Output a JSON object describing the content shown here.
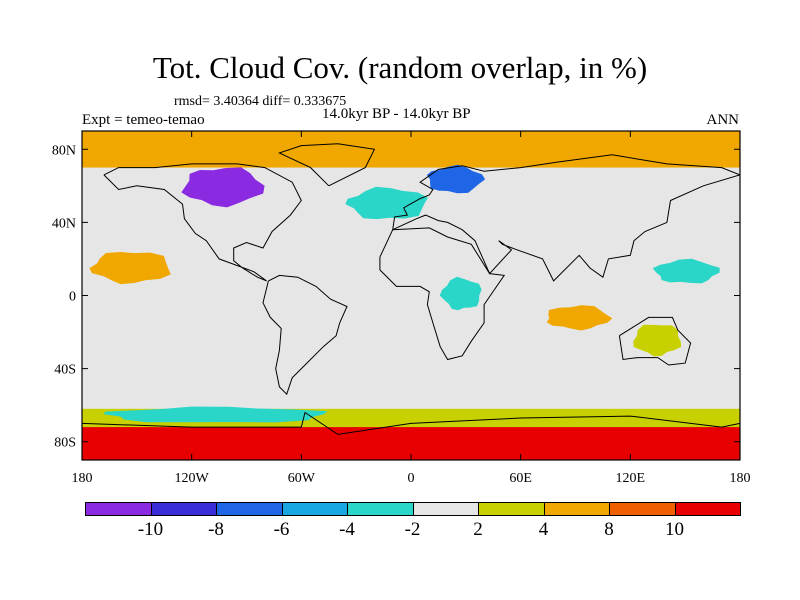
{
  "title": "Tot. Cloud Cov. (random overlap, in %)",
  "stats": {
    "rmsd_diff": "rmsd= 3.40364 diff= 0.333675"
  },
  "left_label": "Expt = temeo-temao",
  "center_label": "14.0kyr BP - 14.0kyr BP",
  "right_label": "ANN",
  "lat_ticks": [
    "80N",
    "40N",
    "0",
    "40S",
    "80S"
  ],
  "lon_ticks": [
    "180",
    "120W",
    "60W",
    "0",
    "60E",
    "120E",
    "180"
  ],
  "colorbar": {
    "labels": [
      "-10",
      "-8",
      "-6",
      "-4",
      "-2",
      "2",
      "4",
      "8",
      "10"
    ],
    "colors": [
      "#8a2be2",
      "#3a2ed8",
      "#1e66e6",
      "#1aa6e0",
      "#2ad6c8",
      "#e6e6e6",
      "#c8d000",
      "#f0a800",
      "#f06000",
      "#e80000"
    ]
  },
  "chart_data": {
    "type": "heatmap",
    "variable": "Tot. Cloud Cov. (random overlap, in %)",
    "projection": "cylindrical-equidistant",
    "lon_range": [
      -180,
      180
    ],
    "lat_range": [
      -90,
      90
    ],
    "lon_ticks": [
      -180,
      -120,
      -60,
      0,
      60,
      120,
      180
    ],
    "lat_ticks": [
      80,
      40,
      0,
      -40,
      -80
    ],
    "contour_levels": [
      -10,
      -8,
      -6,
      -4,
      -2,
      2,
      4,
      8,
      10
    ],
    "level_colors": [
      "#8a2be2",
      "#3a2ed8",
      "#1e66e6",
      "#1aa6e0",
      "#2ad6c8",
      "#e6e6e6",
      "#c8d000",
      "#f0a800",
      "#f06000",
      "#e80000"
    ],
    "rmsd": 3.40364,
    "diff": 0.333675,
    "regions": [
      {
        "name": "southern-ocean-band",
        "lon": [
          -180,
          180
        ],
        "lat": [
          -90,
          -70
        ],
        "value": 10
      },
      {
        "name": "southern-ocean-edge",
        "lon": [
          -180,
          180
        ],
        "lat": [
          -72,
          -62
        ],
        "value": 3
      },
      {
        "name": "antarctic-teal-belt",
        "lon": [
          -180,
          -40
        ],
        "lat": [
          -70,
          -60
        ],
        "value": -4
      },
      {
        "name": "arctic-mixed",
        "lon": [
          -180,
          180
        ],
        "lat": [
          70,
          90
        ],
        "value": 5
      },
      {
        "name": "laurentide-purple",
        "lon": [
          -130,
          -80
        ],
        "lat": [
          48,
          72
        ],
        "value": -11
      },
      {
        "name": "scandinavia-negative",
        "lon": [
          5,
          40
        ],
        "lat": [
          55,
          72
        ],
        "value": -7
      },
      {
        "name": "n-atlantic-teal",
        "lon": [
          -40,
          10
        ],
        "lat": [
          40,
          60
        ],
        "value": -3
      },
      {
        "name": "n-pacific-orange",
        "lon": [
          -180,
          -130
        ],
        "lat": [
          5,
          25
        ],
        "value": 5
      },
      {
        "name": "indian-ocean-orange",
        "lon": [
          70,
          110
        ],
        "lat": [
          -20,
          -5
        ],
        "value": 5
      },
      {
        "name": "w-pacific-teal",
        "lon": [
          130,
          170
        ],
        "lat": [
          5,
          20
        ],
        "value": -3
      },
      {
        "name": "africa-teal",
        "lon": [
          15,
          40
        ],
        "lat": [
          -10,
          10
        ],
        "value": -3
      },
      {
        "name": "australia-yellow",
        "lon": [
          120,
          150
        ],
        "lat": [
          -35,
          -15
        ],
        "value": 3
      }
    ]
  }
}
